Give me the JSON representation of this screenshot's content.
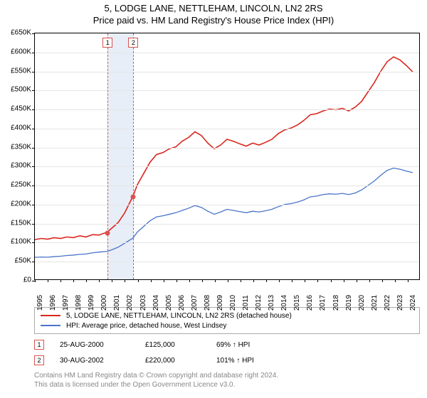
{
  "title": "5, LODGE LANE, NETTLEHAM, LINCOLN, LN2 2RS",
  "subtitle": "Price paid vs. HM Land Registry's House Price Index (HPI)",
  "chart": {
    "type": "line",
    "background_color": "#ffffff",
    "grid_color": "#e5e5e5",
    "axis_color": "#000000",
    "tick_fontsize": 10,
    "x": {
      "min": 1995,
      "max": 2025,
      "ticks": [
        1995,
        1996,
        1997,
        1998,
        1999,
        2000,
        2001,
        2002,
        2003,
        2004,
        2005,
        2006,
        2007,
        2008,
        2009,
        2010,
        2011,
        2012,
        2013,
        2014,
        2015,
        2016,
        2017,
        2018,
        2019,
        2020,
        2021,
        2022,
        2023,
        2024
      ]
    },
    "y": {
      "min": 0,
      "max": 650000,
      "ticks": [
        0,
        50000,
        100000,
        150000,
        200000,
        250000,
        300000,
        350000,
        400000,
        450000,
        500000,
        550000,
        600000,
        650000
      ],
      "tick_labels": [
        "£0",
        "£50K",
        "£100K",
        "£150K",
        "£200K",
        "£250K",
        "£300K",
        "£350K",
        "£400K",
        "£450K",
        "£500K",
        "£550K",
        "£600K",
        "£650K"
      ]
    },
    "marker_band": {
      "x_start": 2000.66,
      "x_end": 2002.66,
      "color": "#e8eef7"
    },
    "markers": [
      {
        "label": "1",
        "x": 2000.66,
        "y": 125000,
        "line_color": "#d9534f",
        "badge_border": "#d9534f",
        "dot_color": "#d9534f"
      },
      {
        "label": "2",
        "x": 2002.66,
        "y": 220000,
        "line_color": "#d9534f",
        "badge_border": "#d9534f",
        "dot_color": "#d9534f"
      }
    ],
    "series": [
      {
        "name": "property",
        "label": "5, LODGE LANE, NETTLEHAM, LINCOLN, LN2 2RS (detached house)",
        "color": "#d9261c",
        "width": 1.6,
        "points": [
          [
            1995.0,
            105000
          ],
          [
            1995.5,
            108000
          ],
          [
            1996.0,
            106000
          ],
          [
            1996.5,
            110000
          ],
          [
            1997.0,
            108000
          ],
          [
            1997.5,
            112000
          ],
          [
            1998.0,
            110000
          ],
          [
            1998.5,
            115000
          ],
          [
            1999.0,
            112000
          ],
          [
            1999.5,
            118000
          ],
          [
            2000.0,
            117000
          ],
          [
            2000.66,
            125000
          ],
          [
            2001.0,
            135000
          ],
          [
            2001.5,
            150000
          ],
          [
            2002.0,
            175000
          ],
          [
            2002.66,
            220000
          ],
          [
            2003.0,
            250000
          ],
          [
            2003.5,
            280000
          ],
          [
            2004.0,
            310000
          ],
          [
            2004.5,
            330000
          ],
          [
            2005.0,
            335000
          ],
          [
            2005.5,
            345000
          ],
          [
            2006.0,
            350000
          ],
          [
            2006.5,
            365000
          ],
          [
            2007.0,
            375000
          ],
          [
            2007.5,
            390000
          ],
          [
            2008.0,
            380000
          ],
          [
            2008.5,
            360000
          ],
          [
            2009.0,
            345000
          ],
          [
            2009.5,
            355000
          ],
          [
            2010.0,
            370000
          ],
          [
            2010.5,
            365000
          ],
          [
            2011.0,
            358000
          ],
          [
            2011.5,
            352000
          ],
          [
            2012.0,
            360000
          ],
          [
            2012.5,
            355000
          ],
          [
            2013.0,
            362000
          ],
          [
            2013.5,
            370000
          ],
          [
            2014.0,
            385000
          ],
          [
            2014.5,
            395000
          ],
          [
            2015.0,
            400000
          ],
          [
            2015.5,
            408000
          ],
          [
            2016.0,
            420000
          ],
          [
            2016.5,
            435000
          ],
          [
            2017.0,
            438000
          ],
          [
            2017.5,
            445000
          ],
          [
            2018.0,
            450000
          ],
          [
            2018.5,
            448000
          ],
          [
            2019.0,
            452000
          ],
          [
            2019.5,
            445000
          ],
          [
            2020.0,
            455000
          ],
          [
            2020.5,
            470000
          ],
          [
            2021.0,
            495000
          ],
          [
            2021.5,
            520000
          ],
          [
            2022.0,
            550000
          ],
          [
            2022.5,
            575000
          ],
          [
            2023.0,
            588000
          ],
          [
            2023.5,
            580000
          ],
          [
            2024.0,
            565000
          ],
          [
            2024.5,
            548000
          ]
        ]
      },
      {
        "name": "hpi",
        "label": "HPI: Average price, detached house, West Lindsey",
        "color": "#4a74c9",
        "width": 1.3,
        "points": [
          [
            1995.0,
            58000
          ],
          [
            1995.5,
            59000
          ],
          [
            1996.0,
            58500
          ],
          [
            1996.5,
            60000
          ],
          [
            1997.0,
            61000
          ],
          [
            1997.5,
            63000
          ],
          [
            1998.0,
            64000
          ],
          [
            1998.5,
            66000
          ],
          [
            1999.0,
            67000
          ],
          [
            1999.5,
            70000
          ],
          [
            2000.0,
            72000
          ],
          [
            2000.66,
            74000
          ],
          [
            2001.0,
            78000
          ],
          [
            2001.5,
            85000
          ],
          [
            2002.0,
            95000
          ],
          [
            2002.66,
            109000
          ],
          [
            2003.0,
            125000
          ],
          [
            2003.5,
            140000
          ],
          [
            2004.0,
            155000
          ],
          [
            2004.5,
            165000
          ],
          [
            2005.0,
            168000
          ],
          [
            2005.5,
            172000
          ],
          [
            2006.0,
            176000
          ],
          [
            2006.5,
            182000
          ],
          [
            2007.0,
            188000
          ],
          [
            2007.5,
            195000
          ],
          [
            2008.0,
            190000
          ],
          [
            2008.5,
            180000
          ],
          [
            2009.0,
            172000
          ],
          [
            2009.5,
            178000
          ],
          [
            2010.0,
            185000
          ],
          [
            2010.5,
            182000
          ],
          [
            2011.0,
            179000
          ],
          [
            2011.5,
            176000
          ],
          [
            2012.0,
            180000
          ],
          [
            2012.5,
            178000
          ],
          [
            2013.0,
            181000
          ],
          [
            2013.5,
            185000
          ],
          [
            2014.0,
            192000
          ],
          [
            2014.5,
            198000
          ],
          [
            2015.0,
            200000
          ],
          [
            2015.5,
            204000
          ],
          [
            2016.0,
            210000
          ],
          [
            2016.5,
            218000
          ],
          [
            2017.0,
            220000
          ],
          [
            2017.5,
            224000
          ],
          [
            2018.0,
            226000
          ],
          [
            2018.5,
            225000
          ],
          [
            2019.0,
            227000
          ],
          [
            2019.5,
            224000
          ],
          [
            2020.0,
            228000
          ],
          [
            2020.5,
            236000
          ],
          [
            2021.0,
            248000
          ],
          [
            2021.5,
            260000
          ],
          [
            2022.0,
            275000
          ],
          [
            2022.5,
            288000
          ],
          [
            2023.0,
            294000
          ],
          [
            2023.5,
            291000
          ],
          [
            2024.0,
            286000
          ],
          [
            2024.5,
            282000
          ]
        ]
      }
    ]
  },
  "legend": {
    "border_color": "#aaaaaa",
    "fontsize": 10
  },
  "sales": [
    {
      "label": "1",
      "badge_border": "#d9534f",
      "date": "25-AUG-2000",
      "price": "£125,000",
      "hpi": "69% ↑ HPI"
    },
    {
      "label": "2",
      "badge_border": "#d9534f",
      "date": "30-AUG-2002",
      "price": "£220,000",
      "hpi": "101% ↑ HPI"
    }
  ],
  "footer": {
    "line1": "Contains HM Land Registry data © Crown copyright and database right 2024.",
    "line2": "This data is licensed under the Open Government Licence v3.0.",
    "color": "#888888"
  }
}
